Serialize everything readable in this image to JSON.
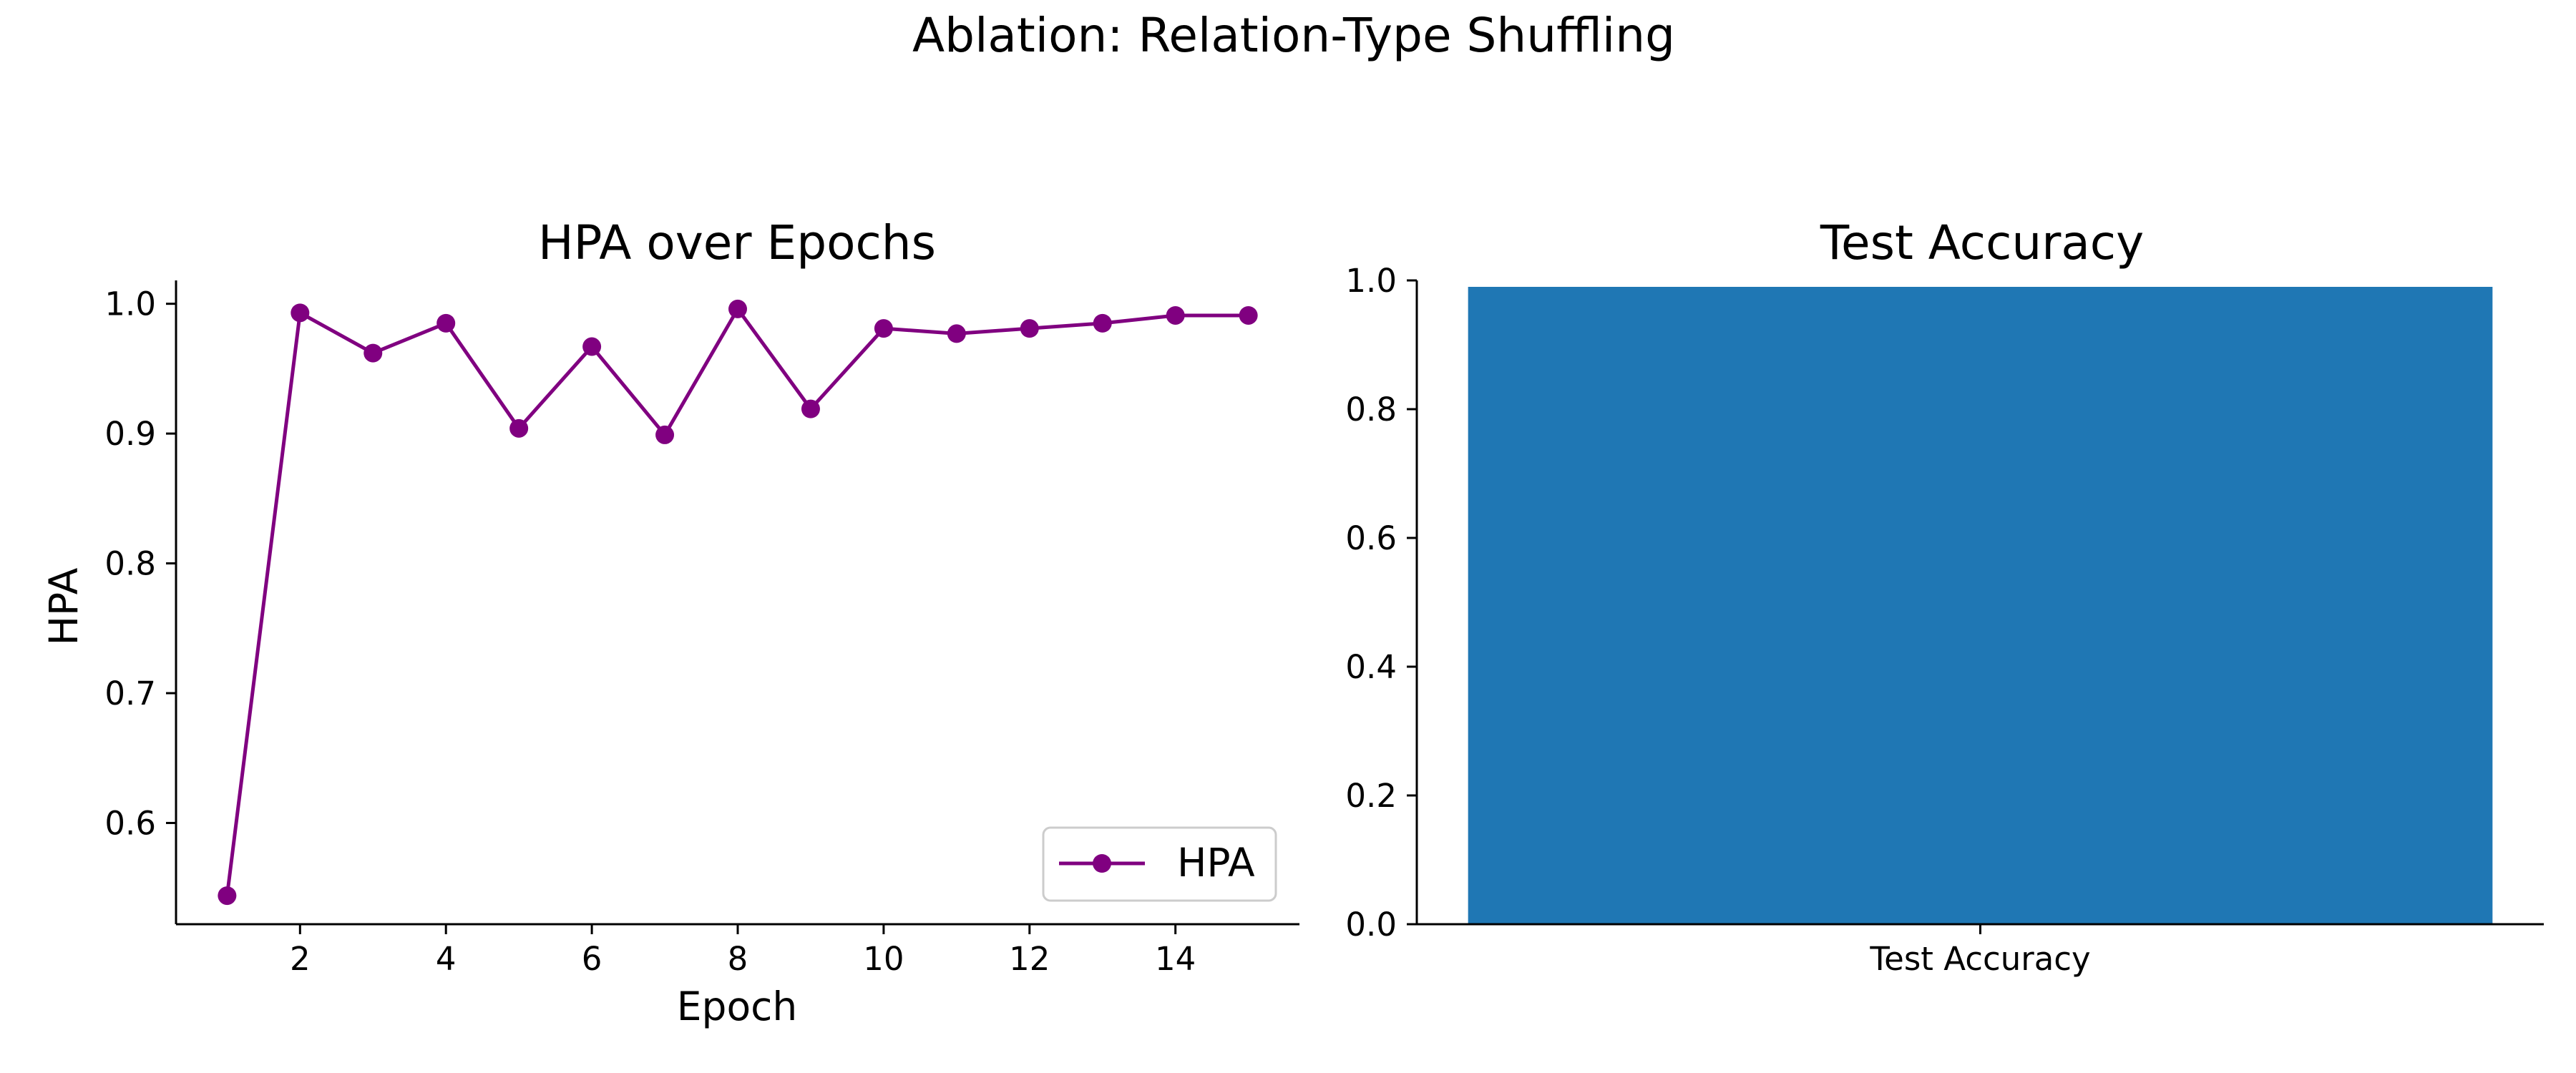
{
  "figure": {
    "suptitle": "Ablation: Relation-Type Shuffling"
  },
  "chart_data": [
    {
      "type": "line",
      "title": "HPA over Epochs",
      "xlabel": "Epoch",
      "ylabel": "HPA",
      "x": [
        1,
        2,
        3,
        4,
        5,
        6,
        7,
        8,
        9,
        10,
        11,
        12,
        13,
        14,
        15
      ],
      "series": [
        {
          "name": "HPA",
          "color": "#800080",
          "marker": "circle",
          "values": [
            0.544,
            0.993,
            0.962,
            0.985,
            0.904,
            0.967,
            0.899,
            0.996,
            0.919,
            0.981,
            0.977,
            0.981,
            0.985,
            0.991,
            0.991
          ]
        }
      ],
      "xlim": [
        0.3,
        15.7
      ],
      "ylim": [
        0.522,
        1.018
      ],
      "xticks": [
        2,
        4,
        6,
        8,
        10,
        12,
        14
      ],
      "yticks": [
        0.6,
        0.7,
        0.8,
        0.9,
        1.0
      ],
      "legend_position": "lower-right",
      "grid": false
    },
    {
      "type": "bar",
      "title": "Test Accuracy",
      "categories": [
        "Test Accuracy"
      ],
      "values": [
        0.99
      ],
      "color": "#1f77b4",
      "ylim": [
        0,
        1.0
      ],
      "yticks": [
        0.0,
        0.2,
        0.4,
        0.6,
        0.8,
        1.0
      ],
      "grid": false
    }
  ]
}
